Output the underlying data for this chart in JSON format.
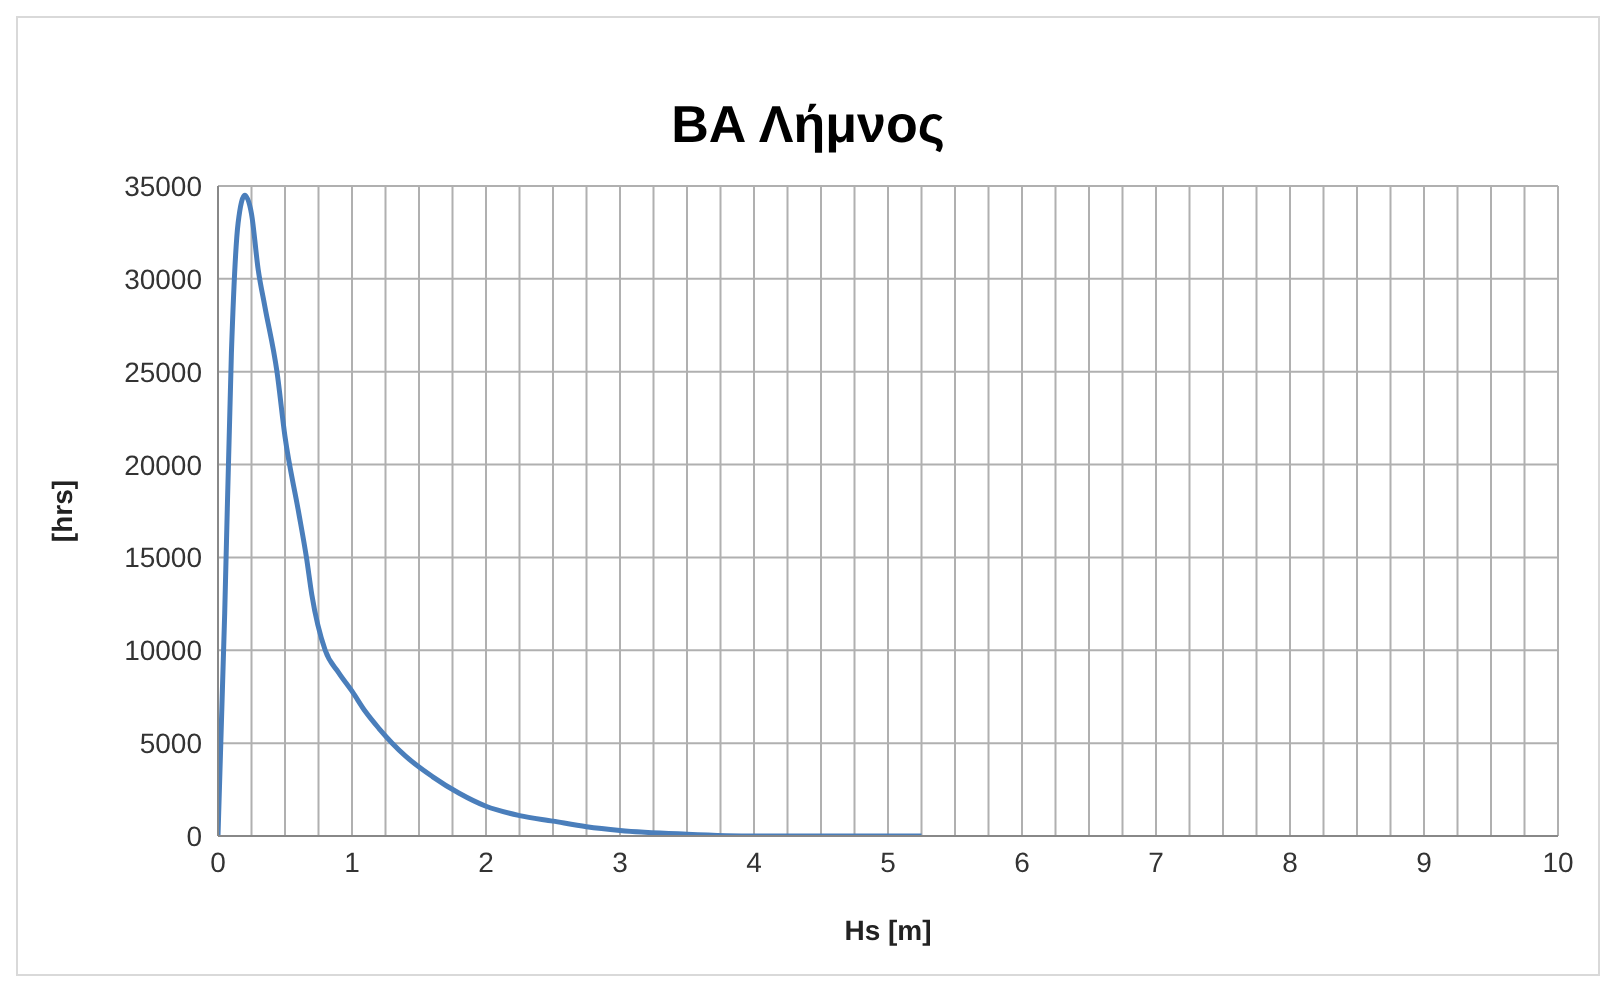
{
  "chart_data": {
    "type": "line",
    "title": "ΒΑ Λήμνος",
    "xlabel": "Hs [m]",
    "ylabel": "[hrs]",
    "x": [
      0,
      0.05,
      0.1,
      0.15,
      0.2,
      0.25,
      0.3,
      0.35,
      0.44,
      0.5,
      0.6,
      0.66,
      0.7,
      0.8,
      0.9,
      1.0,
      1.1,
      1.2,
      1.3,
      1.4,
      1.6,
      1.8,
      2.0,
      2.25,
      2.5,
      2.75,
      3.0,
      3.5,
      4.0,
      4.5,
      5.0,
      5.25
    ],
    "series": [
      {
        "color": "#4a7ebb",
        "values": [
          0,
          12000,
          26000,
          33000,
          34500,
          33500,
          30500,
          28500,
          25000,
          21500,
          17500,
          15000,
          13000,
          10000,
          8800,
          7800,
          6700,
          5800,
          5000,
          4300,
          3200,
          2300,
          1600,
          1100,
          800,
          500,
          300,
          100,
          0,
          0,
          0,
          0
        ]
      }
    ],
    "xlim": [
      0,
      10
    ],
    "xticks": [
      0,
      1,
      2,
      3,
      4,
      5,
      6,
      7,
      8,
      9,
      10
    ],
    "ylim": [
      0,
      35000
    ],
    "yticks": [
      0,
      5000,
      10000,
      15000,
      20000,
      25000,
      30000,
      35000
    ],
    "grid": true,
    "marker": "none",
    "line_style": "solid"
  }
}
